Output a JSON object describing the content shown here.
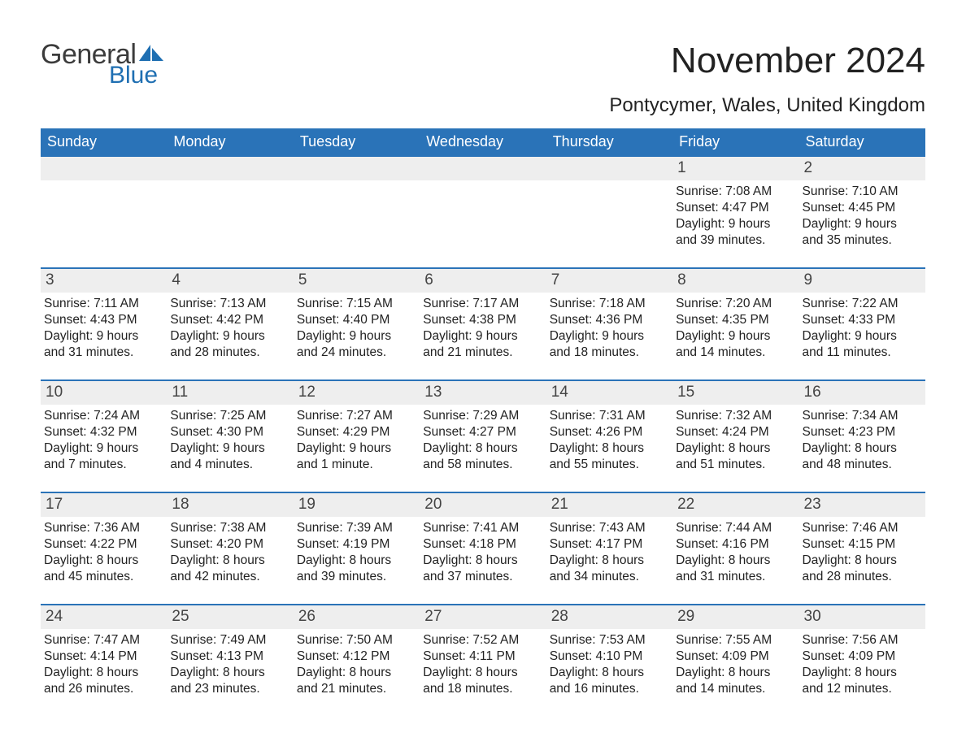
{
  "logo": {
    "general": "General",
    "blue": "Blue",
    "sail_color": "#1f6fb2"
  },
  "title": "November 2024",
  "subtitle": "Pontycymer, Wales, United Kingdom",
  "colors": {
    "header_bg": "#2a73b8",
    "header_text": "#ffffff",
    "daynum_bg": "#eeeeee",
    "row_border": "#2a73b8",
    "body_text": "#222222"
  },
  "fontsize": {
    "title": 44,
    "subtitle": 24,
    "dow": 18,
    "daynum": 19,
    "body": 15.5
  },
  "dow": [
    "Sunday",
    "Monday",
    "Tuesday",
    "Wednesday",
    "Thursday",
    "Friday",
    "Saturday"
  ],
  "weeks": [
    [
      null,
      null,
      null,
      null,
      null,
      {
        "n": "1",
        "sr": "Sunrise: 7:08 AM",
        "ss": "Sunset: 4:47 PM",
        "d1": "Daylight: 9 hours",
        "d2": "and 39 minutes."
      },
      {
        "n": "2",
        "sr": "Sunrise: 7:10 AM",
        "ss": "Sunset: 4:45 PM",
        "d1": "Daylight: 9 hours",
        "d2": "and 35 minutes."
      }
    ],
    [
      {
        "n": "3",
        "sr": "Sunrise: 7:11 AM",
        "ss": "Sunset: 4:43 PM",
        "d1": "Daylight: 9 hours",
        "d2": "and 31 minutes."
      },
      {
        "n": "4",
        "sr": "Sunrise: 7:13 AM",
        "ss": "Sunset: 4:42 PM",
        "d1": "Daylight: 9 hours",
        "d2": "and 28 minutes."
      },
      {
        "n": "5",
        "sr": "Sunrise: 7:15 AM",
        "ss": "Sunset: 4:40 PM",
        "d1": "Daylight: 9 hours",
        "d2": "and 24 minutes."
      },
      {
        "n": "6",
        "sr": "Sunrise: 7:17 AM",
        "ss": "Sunset: 4:38 PM",
        "d1": "Daylight: 9 hours",
        "d2": "and 21 minutes."
      },
      {
        "n": "7",
        "sr": "Sunrise: 7:18 AM",
        "ss": "Sunset: 4:36 PM",
        "d1": "Daylight: 9 hours",
        "d2": "and 18 minutes."
      },
      {
        "n": "8",
        "sr": "Sunrise: 7:20 AM",
        "ss": "Sunset: 4:35 PM",
        "d1": "Daylight: 9 hours",
        "d2": "and 14 minutes."
      },
      {
        "n": "9",
        "sr": "Sunrise: 7:22 AM",
        "ss": "Sunset: 4:33 PM",
        "d1": "Daylight: 9 hours",
        "d2": "and 11 minutes."
      }
    ],
    [
      {
        "n": "10",
        "sr": "Sunrise: 7:24 AM",
        "ss": "Sunset: 4:32 PM",
        "d1": "Daylight: 9 hours",
        "d2": "and 7 minutes."
      },
      {
        "n": "11",
        "sr": "Sunrise: 7:25 AM",
        "ss": "Sunset: 4:30 PM",
        "d1": "Daylight: 9 hours",
        "d2": "and 4 minutes."
      },
      {
        "n": "12",
        "sr": "Sunrise: 7:27 AM",
        "ss": "Sunset: 4:29 PM",
        "d1": "Daylight: 9 hours",
        "d2": "and 1 minute."
      },
      {
        "n": "13",
        "sr": "Sunrise: 7:29 AM",
        "ss": "Sunset: 4:27 PM",
        "d1": "Daylight: 8 hours",
        "d2": "and 58 minutes."
      },
      {
        "n": "14",
        "sr": "Sunrise: 7:31 AM",
        "ss": "Sunset: 4:26 PM",
        "d1": "Daylight: 8 hours",
        "d2": "and 55 minutes."
      },
      {
        "n": "15",
        "sr": "Sunrise: 7:32 AM",
        "ss": "Sunset: 4:24 PM",
        "d1": "Daylight: 8 hours",
        "d2": "and 51 minutes."
      },
      {
        "n": "16",
        "sr": "Sunrise: 7:34 AM",
        "ss": "Sunset: 4:23 PM",
        "d1": "Daylight: 8 hours",
        "d2": "and 48 minutes."
      }
    ],
    [
      {
        "n": "17",
        "sr": "Sunrise: 7:36 AM",
        "ss": "Sunset: 4:22 PM",
        "d1": "Daylight: 8 hours",
        "d2": "and 45 minutes."
      },
      {
        "n": "18",
        "sr": "Sunrise: 7:38 AM",
        "ss": "Sunset: 4:20 PM",
        "d1": "Daylight: 8 hours",
        "d2": "and 42 minutes."
      },
      {
        "n": "19",
        "sr": "Sunrise: 7:39 AM",
        "ss": "Sunset: 4:19 PM",
        "d1": "Daylight: 8 hours",
        "d2": "and 39 minutes."
      },
      {
        "n": "20",
        "sr": "Sunrise: 7:41 AM",
        "ss": "Sunset: 4:18 PM",
        "d1": "Daylight: 8 hours",
        "d2": "and 37 minutes."
      },
      {
        "n": "21",
        "sr": "Sunrise: 7:43 AM",
        "ss": "Sunset: 4:17 PM",
        "d1": "Daylight: 8 hours",
        "d2": "and 34 minutes."
      },
      {
        "n": "22",
        "sr": "Sunrise: 7:44 AM",
        "ss": "Sunset: 4:16 PM",
        "d1": "Daylight: 8 hours",
        "d2": "and 31 minutes."
      },
      {
        "n": "23",
        "sr": "Sunrise: 7:46 AM",
        "ss": "Sunset: 4:15 PM",
        "d1": "Daylight: 8 hours",
        "d2": "and 28 minutes."
      }
    ],
    [
      {
        "n": "24",
        "sr": "Sunrise: 7:47 AM",
        "ss": "Sunset: 4:14 PM",
        "d1": "Daylight: 8 hours",
        "d2": "and 26 minutes."
      },
      {
        "n": "25",
        "sr": "Sunrise: 7:49 AM",
        "ss": "Sunset: 4:13 PM",
        "d1": "Daylight: 8 hours",
        "d2": "and 23 minutes."
      },
      {
        "n": "26",
        "sr": "Sunrise: 7:50 AM",
        "ss": "Sunset: 4:12 PM",
        "d1": "Daylight: 8 hours",
        "d2": "and 21 minutes."
      },
      {
        "n": "27",
        "sr": "Sunrise: 7:52 AM",
        "ss": "Sunset: 4:11 PM",
        "d1": "Daylight: 8 hours",
        "d2": "and 18 minutes."
      },
      {
        "n": "28",
        "sr": "Sunrise: 7:53 AM",
        "ss": "Sunset: 4:10 PM",
        "d1": "Daylight: 8 hours",
        "d2": "and 16 minutes."
      },
      {
        "n": "29",
        "sr": "Sunrise: 7:55 AM",
        "ss": "Sunset: 4:09 PM",
        "d1": "Daylight: 8 hours",
        "d2": "and 14 minutes."
      },
      {
        "n": "30",
        "sr": "Sunrise: 7:56 AM",
        "ss": "Sunset: 4:09 PM",
        "d1": "Daylight: 8 hours",
        "d2": "and 12 minutes."
      }
    ]
  ]
}
